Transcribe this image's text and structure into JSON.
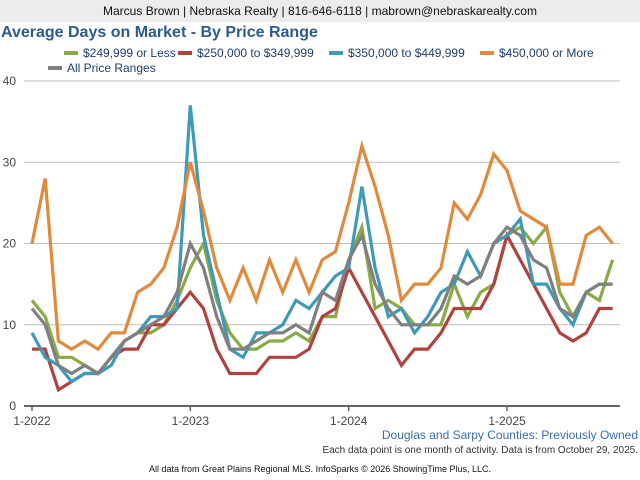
{
  "header": {
    "contact": "Marcus Brown | Nebraska Realty | 816-646-6118 | mabrown@nebraskarealty.com"
  },
  "chart_data": {
    "type": "line",
    "title": "Average Days on Market - By Price Range",
    "xlabel": "",
    "ylabel": "",
    "ylim": [
      0,
      40
    ],
    "yticks": [
      "0",
      "10",
      "20",
      "30",
      "40"
    ],
    "xticks": [
      {
        "label": "1-2022",
        "index": 0
      },
      {
        "label": "1-2023",
        "index": 12
      },
      {
        "label": "1-2024",
        "index": 24
      },
      {
        "label": "1-2025",
        "index": 36
      }
    ],
    "grid": true,
    "legend_position": "top-left",
    "x": [
      "1-2022",
      "2-2022",
      "3-2022",
      "4-2022",
      "5-2022",
      "6-2022",
      "7-2022",
      "8-2022",
      "9-2022",
      "10-2022",
      "11-2022",
      "12-2022",
      "1-2023",
      "2-2023",
      "3-2023",
      "4-2023",
      "5-2023",
      "6-2023",
      "7-2023",
      "8-2023",
      "9-2023",
      "10-2023",
      "11-2023",
      "12-2023",
      "1-2024",
      "2-2024",
      "3-2024",
      "4-2024",
      "5-2024",
      "6-2024",
      "7-2024",
      "8-2024",
      "9-2024",
      "10-2024",
      "11-2024",
      "12-2024",
      "1-2025",
      "2-2025",
      "3-2025",
      "4-2025",
      "5-2025",
      "6-2025",
      "7-2025",
      "8-2025",
      "9-2025"
    ],
    "series": [
      {
        "name": "$249,999 or Less",
        "color": "#8aaa45",
        "values": [
          13,
          11,
          6,
          6,
          5,
          4,
          6,
          8,
          9,
          9,
          10,
          13,
          17,
          20,
          13,
          9,
          7,
          7,
          8,
          8,
          9,
          8,
          11,
          11,
          18,
          22,
          12,
          13,
          12,
          10,
          10,
          10,
          15,
          11,
          14,
          15,
          21,
          22,
          20,
          22,
          14,
          11,
          14,
          13,
          18
        ]
      },
      {
        "name": "$250,000 to $349,999",
        "color": "#b0433f",
        "values": [
          7,
          7,
          2,
          3,
          4,
          4,
          6,
          7,
          7,
          10,
          10,
          12,
          14,
          12,
          7,
          4,
          4,
          4,
          6,
          6,
          6,
          7,
          11,
          12,
          17,
          14,
          11,
          8,
          5,
          7,
          7,
          9,
          12,
          12,
          12,
          15,
          21,
          18,
          15,
          12,
          9,
          8,
          9,
          12,
          12
        ]
      },
      {
        "name": "$350,000 to $449,999",
        "color": "#3f9ab8",
        "values": [
          9,
          6,
          5,
          3,
          4,
          4,
          5,
          8,
          9,
          11,
          11,
          12,
          37,
          21,
          14,
          7,
          6,
          9,
          9,
          10,
          13,
          12,
          14,
          16,
          17,
          27,
          17,
          11,
          12,
          9,
          11,
          14,
          15,
          19,
          16,
          20,
          21,
          23,
          15,
          15,
          12,
          10,
          14,
          15,
          15
        ]
      },
      {
        "name": "$450,000 or More",
        "color": "#e08a3c",
        "values": [
          20,
          28,
          8,
          7,
          8,
          7,
          9,
          9,
          14,
          15,
          17,
          22,
          30,
          24,
          17,
          13,
          17,
          13,
          18,
          14,
          18,
          14,
          18,
          19,
          25,
          32,
          27,
          21,
          13,
          15,
          15,
          17,
          25,
          23,
          26,
          31,
          29,
          24,
          23,
          22,
          15,
          15,
          21,
          22,
          20
        ]
      },
      {
        "name": "All Price Ranges",
        "color": "#808080",
        "values": [
          12,
          10,
          5,
          4,
          5,
          4,
          6,
          8,
          9,
          10,
          11,
          14,
          20,
          17,
          11,
          7,
          7,
          8,
          9,
          9,
          10,
          9,
          14,
          13,
          18,
          21,
          15,
          12,
          10,
          10,
          10,
          12,
          16,
          15,
          16,
          20,
          22,
          21,
          18,
          17,
          12,
          11,
          14,
          15,
          15
        ]
      }
    ]
  },
  "footer": {
    "region": "Douglas and Sarpy Counties: Previously Owned",
    "note": "Each data point is one month of activity. Data is from October 29, 2025.",
    "source": "All data from Great Plains Regional MLS. InfoSparks © 2026 ShowingTime Plus, LLC."
  }
}
